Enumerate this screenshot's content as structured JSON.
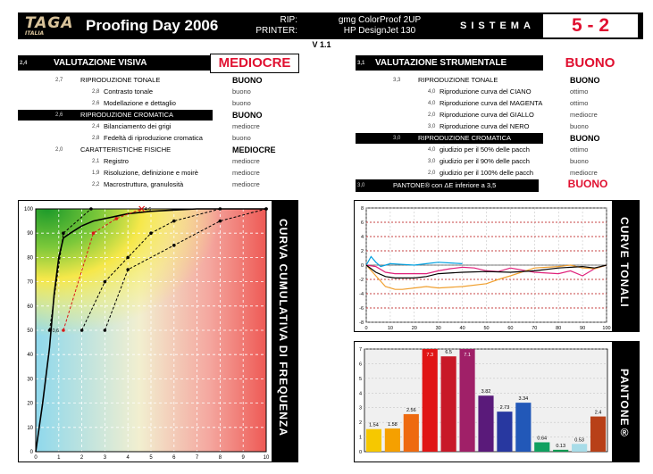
{
  "header": {
    "logo": "TAGA",
    "logo_sub": "ITALIA",
    "title": "Proofing Day 2006",
    "rip_label": "RIP:",
    "printer_label": "PRINTER:",
    "rip_value": "gmg ColorProof 2UP",
    "printer_value": "HP DesignJet 130",
    "sistema": "SISTEMA",
    "score": "5 - 2",
    "version": "V 1.1"
  },
  "visual": {
    "num": "2,4",
    "title": "VALUTAZIONE VISIVA",
    "verdict": "MEDIOCRE",
    "groups": [
      {
        "num": "2,7",
        "label": "RIPRODUZIONE TONALE",
        "value": "BUONO",
        "style": "plain",
        "items": [
          {
            "num": "2,8",
            "label": "Contrasto tonale",
            "value": "buono"
          },
          {
            "num": "2,6",
            "label": "Modellazione e dettaglio",
            "value": "buono"
          }
        ]
      },
      {
        "num": "2,6",
        "label": "RIPRODUZIONE CROMATICA",
        "value": "BUONO",
        "style": "dark",
        "items": [
          {
            "num": "2,4",
            "label": "Bilanciamento dei grigi",
            "value": "mediocre"
          },
          {
            "num": "2,8",
            "label": "Fedeltà di riproduzione cromatica",
            "value": "buono"
          }
        ]
      },
      {
        "num": "2,0",
        "label": "CARATTERISTICHE FISICHE",
        "value": "MEDIOCRE",
        "style": "plain",
        "items": [
          {
            "num": "2,1",
            "label": "Registro",
            "value": "mediocre"
          },
          {
            "num": "1,9",
            "label": "Risoluzione, definizione e moirè",
            "value": "mediocre"
          },
          {
            "num": "2,2",
            "label": "Macrostruttura, granulosità",
            "value": "mediocre"
          }
        ]
      }
    ]
  },
  "instrumental": {
    "num": "3,1",
    "title": "VALUTAZIONE STRUMENTALE",
    "verdict": "BUONO",
    "groups": [
      {
        "num": "3,3",
        "label": "RIPRODUZIONE TONALE",
        "value": "BUONO",
        "style": "plain",
        "items": [
          {
            "num": "4,0",
            "label": "Riproduzione curva del    CIANO",
            "value": "ottimo"
          },
          {
            "num": "4,0",
            "label": "Riproduzione curva del MAGENTA",
            "value": "ottimo"
          },
          {
            "num": "2,0",
            "label": "Riproduzione curva del    GIALLO",
            "value": "mediocre"
          },
          {
            "num": "3,0",
            "label": "Riproduzione curva del      NERO",
            "value": "buono"
          }
        ]
      },
      {
        "num": "3,0",
        "label": "RIPRODUZIONE CROMATICA",
        "value": "BUONO",
        "style": "dark",
        "items": [
          {
            "num": "4,0",
            "label": "giudizio per il   50% delle pacch",
            "value": "ottimo"
          },
          {
            "num": "3,0",
            "label": "giudizio per il   90% delle pacch",
            "value": "buono"
          },
          {
            "num": "2,0",
            "label": "giudizio per il 100% delle pacch",
            "value": "mediocre"
          }
        ]
      }
    ],
    "pantone_num": "3,0",
    "pantone_label": "PANTONE® con ΔE inferiore a 3,5",
    "pantone_value": "BUONO"
  },
  "sidebars": {
    "cumulative": "CURVA CUMULATIVA DI FREQUENZA",
    "tonal": "CURVE TONALI",
    "pantone": "PANTONE®"
  },
  "colors": {
    "accent_red": "#e01030",
    "black": "#000000"
  },
  "chart_data": [
    {
      "type": "line",
      "title": "CURVA CUMULATIVA DI FREQUENZA",
      "xlim": [
        0,
        10
      ],
      "ylim": [
        0,
        100
      ],
      "xticks": [
        "0",
        "1",
        "2",
        "3",
        "4",
        "5",
        "6",
        "7",
        "8",
        "9",
        "10"
      ],
      "yticks": [
        "0",
        "10",
        "20",
        "30",
        "40",
        "50",
        "60",
        "70",
        "80",
        "90",
        "100"
      ],
      "grid": true,
      "series": [
        {
          "style": "solid",
          "color": "#000000",
          "x": [
            0,
            0.3,
            0.6,
            0.8,
            1,
            1.2,
            1.5,
            2,
            2.5,
            3,
            3.5,
            4,
            4.5,
            5,
            6,
            7,
            8,
            9,
            10
          ],
          "y": [
            0,
            20,
            43,
            65,
            80,
            88,
            90,
            93,
            95,
            96,
            97,
            98,
            98.5,
            99,
            99.5,
            100,
            100,
            100,
            100
          ]
        },
        {
          "style": "dashed",
          "color": "#000000",
          "x": [
            0.6,
            1.2,
            2.4
          ],
          "y": [
            50,
            90,
            100
          ]
        },
        {
          "style": "dashed",
          "color": "#d81818",
          "x": [
            1.2,
            2.5,
            3.5,
            4.6
          ],
          "y": [
            50,
            90,
            96,
            100
          ]
        },
        {
          "style": "dashed",
          "color": "#000000",
          "x": [
            2,
            3,
            4,
            5,
            6,
            8,
            10
          ],
          "y": [
            50,
            70,
            80,
            90,
            95,
            100,
            100
          ]
        },
        {
          "style": "dashed",
          "color": "#000000",
          "x": [
            3,
            4,
            6,
            8,
            10
          ],
          "y": [
            50,
            75,
            85,
            95,
            100
          ]
        }
      ],
      "annotations": [
        {
          "x": 0.6,
          "y": 50,
          "text": "0,6"
        },
        {
          "x": 4.6,
          "y": 100,
          "text": "4,6"
        }
      ]
    },
    {
      "type": "line",
      "title": "CURVE TONALI",
      "xlim": [
        0,
        100
      ],
      "ylim": [
        -8,
        8
      ],
      "xticks": [
        "0",
        "10",
        "20",
        "30",
        "40",
        "50",
        "60",
        "70",
        "80",
        "90",
        "100"
      ],
      "yticks": [
        "8",
        "6",
        "4",
        "2",
        "0",
        "-2",
        "-4",
        "-6",
        "-8"
      ],
      "grid": true,
      "reference_lines": [
        6,
        4,
        2,
        -2,
        -4,
        -6
      ],
      "series": [
        {
          "name": "",
          "color": "#00a0e0",
          "x": [
            0,
            2,
            4,
            6,
            8,
            10,
            15,
            20,
            25,
            30,
            40
          ],
          "y": [
            0,
            1.2,
            0.4,
            -0.2,
            0,
            0.2,
            0.1,
            0,
            0.2,
            0.4,
            0.2
          ]
        },
        {
          "name": "",
          "color": "#e0207a",
          "x": [
            0,
            4,
            8,
            12,
            20,
            25,
            30,
            35,
            40,
            45,
            50,
            55,
            60,
            70,
            80,
            85,
            90,
            95,
            100
          ],
          "y": [
            0,
            -0.2,
            -1,
            -1.2,
            -1.2,
            -1.2,
            -0.8,
            -0.5,
            -0.3,
            -0.4,
            -0.8,
            -0.9,
            -0.4,
            -1,
            -1.2,
            -0.8,
            -1.5,
            -0.5,
            0
          ]
        },
        {
          "name": "",
          "color": "#f0a030",
          "x": [
            0,
            4,
            8,
            12,
            15,
            20,
            25,
            30,
            40,
            50,
            55,
            60,
            70,
            80,
            85,
            90,
            95,
            100
          ],
          "y": [
            0,
            -1.5,
            -3,
            -3.4,
            -3.4,
            -3.2,
            -3,
            -3.2,
            -3,
            -2.6,
            -2,
            -1.5,
            -0.4,
            -0.2,
            0,
            -0.4,
            -0.5,
            0
          ]
        },
        {
          "name": "",
          "color": "#000000",
          "x": [
            0,
            4,
            8,
            12,
            20,
            25,
            30,
            40,
            50,
            60,
            70,
            80,
            90,
            95,
            100
          ],
          "y": [
            0,
            -1,
            -1.6,
            -1.8,
            -1.8,
            -1.6,
            -1.2,
            -1,
            -0.9,
            -1,
            -0.8,
            -0.4,
            -0.2,
            -0.4,
            0
          ]
        }
      ]
    },
    {
      "type": "bar",
      "title": "PANTONE®",
      "ylim": [
        0,
        7
      ],
      "yticks": [
        "0",
        "1",
        "2",
        "3",
        "4",
        "5",
        "6",
        "7"
      ],
      "grid": true,
      "values": [
        1.54,
        1.58,
        2.56,
        7.3,
        6.5,
        7.1,
        3.82,
        2.73,
        3.34,
        0.64,
        0.13,
        0.53,
        2.4
      ],
      "labels": [
        "1.54",
        "1.58",
        "2.56",
        "7.3",
        "6.5",
        "7.1",
        "3.82",
        "2.73",
        "3.34",
        "0.64",
        "0.13",
        "0.53",
        "2.4"
      ],
      "colors": [
        "#f6c800",
        "#f5a000",
        "#ee6a10",
        "#e01515",
        "#c81828",
        "#a02068",
        "#5a1a7a",
        "#2838a0",
        "#2258b8",
        "#10a060",
        "#109850",
        "#a8dce8",
        "#b84018"
      ]
    }
  ]
}
